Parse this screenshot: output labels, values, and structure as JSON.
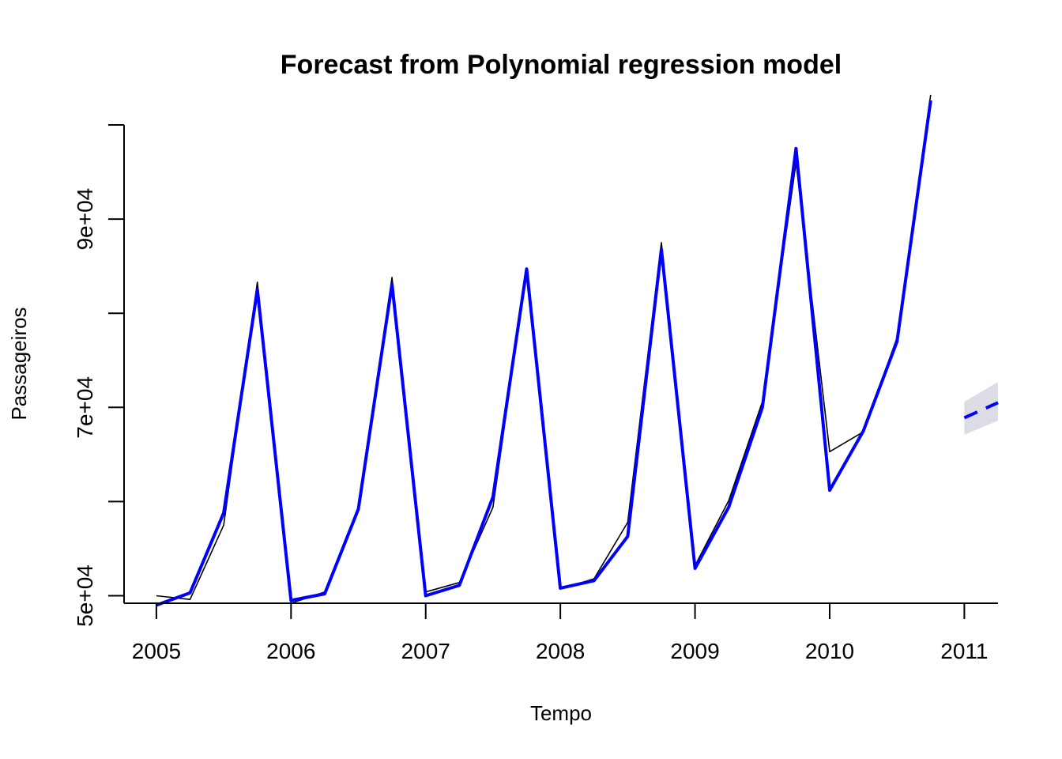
{
  "chart_data": {
    "type": "line",
    "title": "Forecast from Polynomial regression model",
    "xlabel": "Tempo",
    "ylabel": "Passageiros",
    "xlim": [
      2004.76,
      2011.25
    ],
    "ylim": [
      49200,
      100000
    ],
    "x_ticks": [
      2005,
      2006,
      2007,
      2008,
      2009,
      2010,
      2011
    ],
    "x_tick_labels": [
      "2005",
      "2006",
      "2007",
      "2008",
      "2009",
      "2010",
      "2011"
    ],
    "y_ticks": [
      50000,
      60000,
      70000,
      80000,
      90000,
      100000
    ],
    "y_tick_labels": [
      "5e+04",
      "",
      "7e+04",
      "",
      "9e+04",
      ""
    ],
    "x": [
      2005.0,
      2005.25,
      2005.5,
      2005.75,
      2006.0,
      2006.25,
      2006.5,
      2006.75,
      2007.0,
      2007.25,
      2007.5,
      2007.75,
      2008.0,
      2008.25,
      2008.5,
      2008.75,
      2009.0,
      2009.25,
      2009.5,
      2009.75,
      2010.0,
      2010.25,
      2010.5,
      2010.75
    ],
    "series": [
      {
        "role": "observed",
        "color": "#000000",
        "values": [
          50000,
          49600,
          57500,
          83300,
          49200,
          50400,
          59200,
          83800,
          50400,
          51400,
          59400,
          84700,
          50700,
          51800,
          57800,
          87500,
          53200,
          60100,
          70600,
          96000,
          65300,
          67400,
          77400,
          103200
        ]
      },
      {
        "role": "fitted",
        "color": "#0000ff",
        "values": [
          49000,
          50300,
          58800,
          82500,
          49500,
          50200,
          59200,
          83100,
          50000,
          51100,
          60500,
          84700,
          50800,
          51600,
          56300,
          86800,
          52900,
          59400,
          70000,
          97500,
          61200,
          67500,
          77000,
          102600
        ]
      },
      {
        "role": "forecast",
        "color": "#0000ff",
        "dash": "dashed",
        "x": [
          2011.0,
          2011.25
        ],
        "values": [
          68900,
          70500
        ]
      }
    ],
    "interval": {
      "color": "#dcdce4",
      "x": [
        2011.0,
        2011.25
      ],
      "lower": [
        67100,
        68600
      ],
      "upper": [
        70600,
        72700
      ]
    },
    "grid": false,
    "legend": "none"
  }
}
